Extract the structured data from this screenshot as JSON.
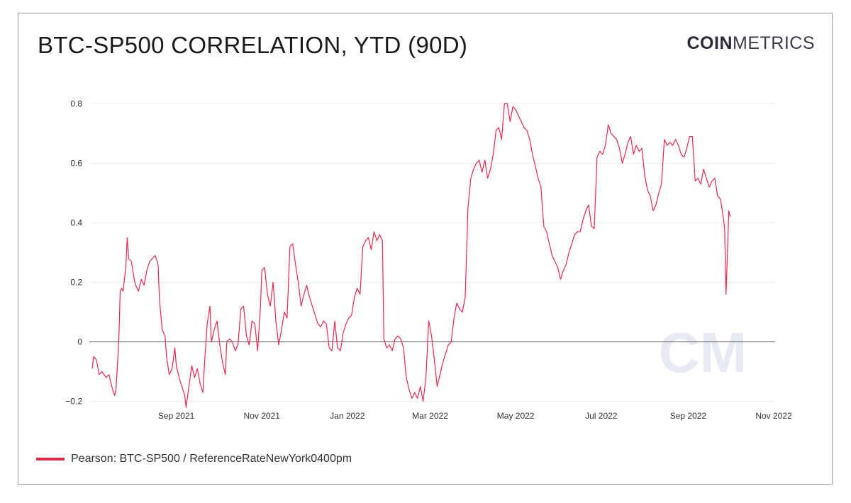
{
  "title": "BTC-SP500 CORRELATION, YTD (90D)",
  "logo": {
    "bold": "COIN",
    "light": "METRICS"
  },
  "watermark": "CM",
  "colors": {
    "series": "#e8284c",
    "zero_line": "#666666",
    "grid": "#ececec",
    "watermark": "#dfe3ee"
  },
  "legend": {
    "label": "Pearson: BTC-SP500 / ReferenceRateNewYork0400pm"
  },
  "chart_data": {
    "type": "line",
    "title": "BTC-SP500 CORRELATION, YTD (90D)",
    "xlabel": "",
    "ylabel": "",
    "ylim": [
      -0.22,
      0.82
    ],
    "xlim": [
      "2021-07-01",
      "2022-11-02"
    ],
    "grid": true,
    "legend_placement": "bottom-left",
    "y_ticks": [
      -0.2,
      0,
      0.2,
      0.4,
      0.6,
      0.8
    ],
    "y_tick_labels": [
      "−0.2",
      "0",
      "0.2",
      "0.4",
      "0.6",
      "0.8"
    ],
    "x_ticks": [
      {
        "date": "2021-09-01",
        "label": "Sep 2021"
      },
      {
        "date": "2021-11-01",
        "label": "Nov 2021"
      },
      {
        "date": "2022-01-01",
        "label": "Jan 2022"
      },
      {
        "date": "2022-03-01",
        "label": "Mar 2022"
      },
      {
        "date": "2022-05-01",
        "label": "May 2022"
      },
      {
        "date": "2022-07-01",
        "label": "Jul 2022"
      },
      {
        "date": "2022-09-01",
        "label": "Sep 2022"
      },
      {
        "date": "2022-11-01",
        "label": "Nov 2022"
      }
    ],
    "series": [
      {
        "name": "Pearson: BTC-SP500 / ReferenceRateNewYork0400pm",
        "points": [
          [
            "2021-07-03",
            -0.09
          ],
          [
            "2021-07-04",
            -0.05
          ],
          [
            "2021-07-06",
            -0.06
          ],
          [
            "2021-07-08",
            -0.11
          ],
          [
            "2021-07-10",
            -0.1
          ],
          [
            "2021-07-13",
            -0.12
          ],
          [
            "2021-07-15",
            -0.11
          ],
          [
            "2021-07-17",
            -0.15
          ],
          [
            "2021-07-19",
            -0.18
          ],
          [
            "2021-07-20",
            -0.16
          ],
          [
            "2021-07-22",
            0.0
          ],
          [
            "2021-07-23",
            0.17
          ],
          [
            "2021-07-24",
            0.18
          ],
          [
            "2021-07-25",
            0.17
          ],
          [
            "2021-07-27",
            0.25
          ],
          [
            "2021-07-28",
            0.35
          ],
          [
            "2021-07-29",
            0.28
          ],
          [
            "2021-07-31",
            0.27
          ],
          [
            "2021-08-02",
            0.21
          ],
          [
            "2021-08-03",
            0.19
          ],
          [
            "2021-08-05",
            0.17
          ],
          [
            "2021-08-07",
            0.21
          ],
          [
            "2021-08-09",
            0.19
          ],
          [
            "2021-08-11",
            0.24
          ],
          [
            "2021-08-13",
            0.27
          ],
          [
            "2021-08-15",
            0.28
          ],
          [
            "2021-08-17",
            0.29
          ],
          [
            "2021-08-19",
            0.26
          ],
          [
            "2021-08-20",
            0.14
          ],
          [
            "2021-08-22",
            0.04
          ],
          [
            "2021-08-24",
            0.02
          ],
          [
            "2021-08-25",
            -0.05
          ],
          [
            "2021-08-27",
            -0.11
          ],
          [
            "2021-08-29",
            -0.09
          ],
          [
            "2021-08-31",
            -0.02
          ],
          [
            "2021-09-01",
            -0.08
          ],
          [
            "2021-09-03",
            -0.12
          ],
          [
            "2021-09-05",
            -0.15
          ],
          [
            "2021-09-07",
            -0.18
          ],
          [
            "2021-09-08",
            -0.22
          ],
          [
            "2021-09-10",
            -0.15
          ],
          [
            "2021-09-12",
            -0.08
          ],
          [
            "2021-09-14",
            -0.12
          ],
          [
            "2021-09-16",
            -0.09
          ],
          [
            "2021-09-18",
            -0.14
          ],
          [
            "2021-09-20",
            -0.17
          ],
          [
            "2021-09-21",
            -0.08
          ],
          [
            "2021-09-23",
            0.06
          ],
          [
            "2021-09-25",
            0.12
          ],
          [
            "2021-09-26",
            0.0
          ],
          [
            "2021-09-28",
            0.04
          ],
          [
            "2021-09-30",
            0.07
          ],
          [
            "2021-10-02",
            -0.01
          ],
          [
            "2021-10-04",
            -0.07
          ],
          [
            "2021-10-06",
            -0.11
          ],
          [
            "2021-10-07",
            0.0
          ],
          [
            "2021-10-09",
            0.01
          ],
          [
            "2021-10-11",
            0.0
          ],
          [
            "2021-10-13",
            -0.03
          ],
          [
            "2021-10-15",
            -0.01
          ],
          [
            "2021-10-17",
            0.11
          ],
          [
            "2021-10-19",
            0.12
          ],
          [
            "2021-10-21",
            0.02
          ],
          [
            "2021-10-23",
            -0.01
          ],
          [
            "2021-10-25",
            0.07
          ],
          [
            "2021-10-27",
            0.06
          ],
          [
            "2021-10-29",
            -0.03
          ],
          [
            "2021-10-31",
            0.12
          ],
          [
            "2021-11-01",
            0.24
          ],
          [
            "2021-11-03",
            0.25
          ],
          [
            "2021-11-05",
            0.16
          ],
          [
            "2021-11-07",
            0.12
          ],
          [
            "2021-11-09",
            0.2
          ],
          [
            "2021-11-11",
            0.07
          ],
          [
            "2021-11-13",
            -0.01
          ],
          [
            "2021-11-15",
            0.04
          ],
          [
            "2021-11-17",
            0.1
          ],
          [
            "2021-11-19",
            0.08
          ],
          [
            "2021-11-21",
            0.32
          ],
          [
            "2021-11-23",
            0.33
          ],
          [
            "2021-11-25",
            0.26
          ],
          [
            "2021-11-27",
            0.2
          ],
          [
            "2021-11-29",
            0.12
          ],
          [
            "2021-12-01",
            0.16
          ],
          [
            "2021-12-03",
            0.19
          ],
          [
            "2021-12-05",
            0.15
          ],
          [
            "2021-12-07",
            0.12
          ],
          [
            "2021-12-09",
            0.09
          ],
          [
            "2021-12-11",
            0.06
          ],
          [
            "2021-12-13",
            0.05
          ],
          [
            "2021-12-15",
            0.07
          ],
          [
            "2021-12-17",
            0.06
          ],
          [
            "2021-12-19",
            -0.02
          ],
          [
            "2021-12-21",
            -0.03
          ],
          [
            "2021-12-23",
            0.07
          ],
          [
            "2021-12-25",
            -0.02
          ],
          [
            "2021-12-27",
            -0.03
          ],
          [
            "2021-12-29",
            0.03
          ],
          [
            "2021-12-31",
            0.06
          ],
          [
            "2022-01-02",
            0.08
          ],
          [
            "2022-01-04",
            0.09
          ],
          [
            "2022-01-06",
            0.15
          ],
          [
            "2022-01-08",
            0.18
          ],
          [
            "2022-01-10",
            0.16
          ],
          [
            "2022-01-12",
            0.32
          ],
          [
            "2022-01-14",
            0.34
          ],
          [
            "2022-01-16",
            0.35
          ],
          [
            "2022-01-18",
            0.31
          ],
          [
            "2022-01-20",
            0.37
          ],
          [
            "2022-01-22",
            0.34
          ],
          [
            "2022-01-24",
            0.36
          ],
          [
            "2022-01-26",
            0.34
          ],
          [
            "2022-01-27",
            0.01
          ],
          [
            "2022-01-29",
            -0.02
          ],
          [
            "2022-01-31",
            -0.01
          ],
          [
            "2022-02-02",
            -0.03
          ],
          [
            "2022-02-04",
            0.01
          ],
          [
            "2022-02-06",
            0.02
          ],
          [
            "2022-02-08",
            0.01
          ],
          [
            "2022-02-10",
            -0.02
          ],
          [
            "2022-02-12",
            -0.12
          ],
          [
            "2022-02-14",
            -0.16
          ],
          [
            "2022-02-16",
            -0.19
          ],
          [
            "2022-02-18",
            -0.17
          ],
          [
            "2022-02-20",
            -0.19
          ],
          [
            "2022-02-22",
            -0.15
          ],
          [
            "2022-02-24",
            -0.2
          ],
          [
            "2022-02-26",
            -0.12
          ],
          [
            "2022-02-28",
            0.07
          ],
          [
            "2022-03-02",
            0.02
          ],
          [
            "2022-03-04",
            -0.06
          ],
          [
            "2022-03-06",
            -0.15
          ],
          [
            "2022-03-08",
            -0.11
          ],
          [
            "2022-03-10",
            -0.07
          ],
          [
            "2022-03-12",
            -0.04
          ],
          [
            "2022-03-14",
            -0.01
          ],
          [
            "2022-03-16",
            0.0
          ],
          [
            "2022-03-18",
            0.08
          ],
          [
            "2022-03-20",
            0.13
          ],
          [
            "2022-03-22",
            0.11
          ],
          [
            "2022-03-24",
            0.1
          ],
          [
            "2022-03-26",
            0.15
          ],
          [
            "2022-03-28",
            0.45
          ],
          [
            "2022-03-30",
            0.55
          ],
          [
            "2022-04-01",
            0.58
          ],
          [
            "2022-04-03",
            0.6
          ],
          [
            "2022-04-05",
            0.61
          ],
          [
            "2022-04-07",
            0.57
          ],
          [
            "2022-04-09",
            0.61
          ],
          [
            "2022-04-11",
            0.55
          ],
          [
            "2022-04-13",
            0.58
          ],
          [
            "2022-04-15",
            0.63
          ],
          [
            "2022-04-17",
            0.71
          ],
          [
            "2022-04-19",
            0.72
          ],
          [
            "2022-04-21",
            0.68
          ],
          [
            "2022-04-23",
            0.8
          ],
          [
            "2022-04-25",
            0.8
          ],
          [
            "2022-04-27",
            0.74
          ],
          [
            "2022-04-29",
            0.79
          ],
          [
            "2022-05-01",
            0.78
          ],
          [
            "2022-05-03",
            0.76
          ],
          [
            "2022-05-05",
            0.74
          ],
          [
            "2022-05-07",
            0.72
          ],
          [
            "2022-05-09",
            0.71
          ],
          [
            "2022-05-11",
            0.68
          ],
          [
            "2022-05-13",
            0.63
          ],
          [
            "2022-05-15",
            0.59
          ],
          [
            "2022-05-17",
            0.55
          ],
          [
            "2022-05-19",
            0.52
          ],
          [
            "2022-05-21",
            0.39
          ],
          [
            "2022-05-23",
            0.37
          ],
          [
            "2022-05-25",
            0.33
          ],
          [
            "2022-05-27",
            0.29
          ],
          [
            "2022-05-29",
            0.27
          ],
          [
            "2022-05-31",
            0.25
          ],
          [
            "2022-06-02",
            0.21
          ],
          [
            "2022-06-04",
            0.24
          ],
          [
            "2022-06-06",
            0.26
          ],
          [
            "2022-06-08",
            0.3
          ],
          [
            "2022-06-10",
            0.33
          ],
          [
            "2022-06-12",
            0.36
          ],
          [
            "2022-06-14",
            0.37
          ],
          [
            "2022-06-16",
            0.37
          ],
          [
            "2022-06-18",
            0.41
          ],
          [
            "2022-06-20",
            0.44
          ],
          [
            "2022-06-22",
            0.46
          ],
          [
            "2022-06-24",
            0.39
          ],
          [
            "2022-06-26",
            0.38
          ],
          [
            "2022-06-28",
            0.62
          ],
          [
            "2022-06-30",
            0.64
          ],
          [
            "2022-07-02",
            0.63
          ],
          [
            "2022-07-04",
            0.66
          ],
          [
            "2022-07-06",
            0.73
          ],
          [
            "2022-07-08",
            0.7
          ],
          [
            "2022-07-10",
            0.69
          ],
          [
            "2022-07-12",
            0.68
          ],
          [
            "2022-07-14",
            0.65
          ],
          [
            "2022-07-16",
            0.6
          ],
          [
            "2022-07-18",
            0.63
          ],
          [
            "2022-07-20",
            0.67
          ],
          [
            "2022-07-22",
            0.69
          ],
          [
            "2022-07-24",
            0.63
          ],
          [
            "2022-07-26",
            0.66
          ],
          [
            "2022-07-28",
            0.64
          ],
          [
            "2022-07-30",
            0.65
          ],
          [
            "2022-08-01",
            0.56
          ],
          [
            "2022-08-03",
            0.51
          ],
          [
            "2022-08-05",
            0.49
          ],
          [
            "2022-08-07",
            0.44
          ],
          [
            "2022-08-09",
            0.46
          ],
          [
            "2022-08-11",
            0.5
          ],
          [
            "2022-08-13",
            0.53
          ],
          [
            "2022-08-15",
            0.68
          ],
          [
            "2022-08-17",
            0.66
          ],
          [
            "2022-08-19",
            0.67
          ],
          [
            "2022-08-21",
            0.66
          ],
          [
            "2022-08-23",
            0.68
          ],
          [
            "2022-08-25",
            0.66
          ],
          [
            "2022-08-27",
            0.63
          ],
          [
            "2022-08-29",
            0.62
          ],
          [
            "2022-08-31",
            0.65
          ],
          [
            "2022-09-02",
            0.69
          ],
          [
            "2022-09-04",
            0.69
          ],
          [
            "2022-09-06",
            0.54
          ],
          [
            "2022-09-08",
            0.55
          ],
          [
            "2022-09-10",
            0.53
          ],
          [
            "2022-09-12",
            0.58
          ],
          [
            "2022-09-14",
            0.55
          ],
          [
            "2022-09-16",
            0.52
          ],
          [
            "2022-09-18",
            0.54
          ],
          [
            "2022-09-20",
            0.55
          ],
          [
            "2022-09-22",
            0.49
          ],
          [
            "2022-09-24",
            0.48
          ],
          [
            "2022-09-26",
            0.42
          ],
          [
            "2022-09-27",
            0.38
          ],
          [
            "2022-09-28",
            0.16
          ],
          [
            "2022-09-29",
            0.3
          ],
          [
            "2022-09-30",
            0.44
          ],
          [
            "2022-10-01",
            0.42
          ]
        ]
      }
    ]
  }
}
